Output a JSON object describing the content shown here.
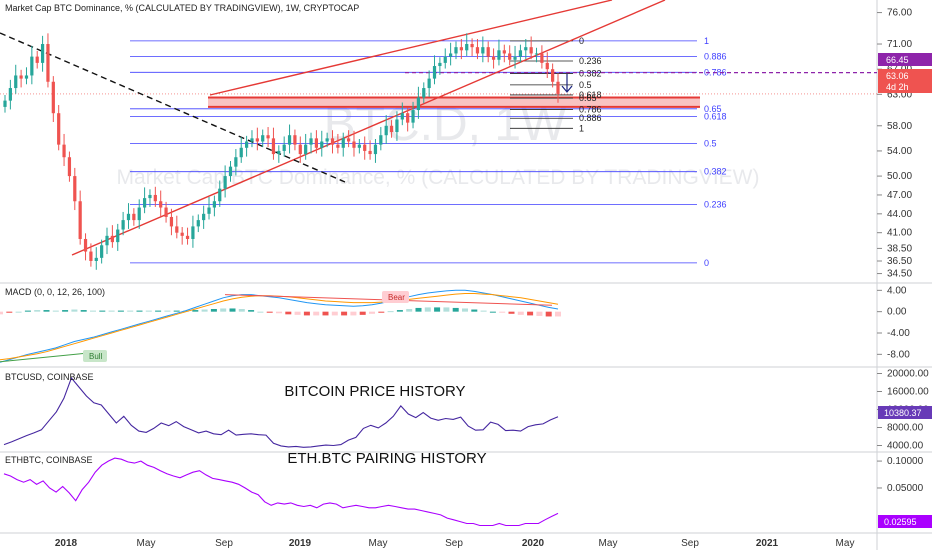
{
  "panes": {
    "main_title": "Market Cap BTC Dominance, % (CALCULATED BY TRADINGVIEW), 1W, CRYPTOCAP",
    "watermark_big": "BTC.D, 1W",
    "watermark_sub": "Market Cap BTC Dominance, % (CALCULATED BY TRADINGVIEW)",
    "macd_title": "MACD (0, 0, 12, 26, 100)",
    "btc_title": "BTCUSD, COINBASE",
    "btc_caption": "BITCOIN PRICE HISTORY",
    "eth_title": "ETHBTC, COINBASE",
    "eth_caption": "ETH.BTC PAIRING HISTORY"
  },
  "price_tags": {
    "level_66": "66.45",
    "last_price": "63.06",
    "countdown": "4d 2h",
    "btc_last": "10380.37",
    "eth_last": "0.02595"
  },
  "colors": {
    "up": "#26a69a",
    "down": "#ef5350",
    "fib_blue": "#3f3fff",
    "trend_red": "#e53935",
    "dotted_purple": "#8e24aa",
    "btc_line": "#4527a0",
    "eth_line": "#aa00ff",
    "macd_line": "#2196f3",
    "signal_line": "#ff9800"
  },
  "chart_data": [
    {
      "type": "candlestick",
      "pane": "main",
      "ylim": [
        33,
        78
      ],
      "yticks": [
        "76.00",
        "71.00",
        "67.00",
        "63.00",
        "58.00",
        "54.00",
        "50.00",
        "47.00",
        "44.00",
        "41.00",
        "38.50",
        "36.50",
        "34.50"
      ],
      "ytick_values": [
        76,
        71,
        67,
        63,
        58,
        54,
        50,
        47,
        44,
        41,
        38.5,
        36.5,
        34.5
      ],
      "x_labels": [
        "2018",
        "May",
        "Sep",
        "2019",
        "May",
        "Sep",
        "2020",
        "May",
        "Sep",
        "2021",
        "May"
      ],
      "closes": [
        62,
        64,
        66,
        65.5,
        66,
        69,
        68,
        71,
        65,
        60,
        55,
        53,
        50,
        46,
        40,
        38,
        36.5,
        37,
        39,
        40.5,
        39.5,
        41.5,
        43,
        44,
        43,
        45,
        46.5,
        47,
        46,
        45,
        43.5,
        42,
        41,
        40.5,
        40,
        42,
        43,
        44,
        45,
        46,
        48,
        50,
        51.5,
        53,
        54.5,
        55.5,
        56,
        55.5,
        56.5,
        56,
        53.5,
        54,
        55,
        56.5,
        55,
        53.5,
        55,
        56,
        54.5,
        55.5,
        56,
        55,
        54.5,
        56,
        55.5,
        54.5,
        55,
        54,
        53.5,
        55,
        56.5,
        58,
        57,
        59,
        60,
        58.5,
        60.5,
        62.5,
        64,
        65.5,
        67.5,
        68,
        69,
        69.5,
        70.5,
        70,
        71,
        70.5,
        69.5,
        70.5,
        69,
        68.5,
        70,
        69.5,
        68.5,
        69,
        70,
        70.5,
        69.5,
        69.5,
        68,
        67,
        65,
        63.06
      ],
      "fib_left_levels": [
        {
          "ratio": "1",
          "value": 71.5
        },
        {
          "ratio": "0.886",
          "value": 69
        },
        {
          "ratio": "0.786",
          "value": 66.5
        },
        {
          "ratio": "0.65",
          "value": 60.7
        },
        {
          "ratio": "0.618",
          "value": 59.5
        },
        {
          "ratio": "0.5",
          "value": 55.2
        },
        {
          "ratio": "0.382",
          "value": 50.7
        },
        {
          "ratio": "0.236",
          "value": 45.5
        },
        {
          "ratio": "0",
          "value": 36.2
        }
      ],
      "fib_right_levels": [
        {
          "ratio": "0",
          "value": 71.5
        },
        {
          "ratio": "0.236",
          "value": 68.3
        },
        {
          "ratio": "0.382",
          "value": 66.3
        },
        {
          "ratio": "0.5",
          "value": 64.5
        },
        {
          "ratio": "0.618",
          "value": 62.9
        },
        {
          "ratio": "0.65",
          "value": 62.4
        },
        {
          "ratio": "0.786",
          "value": 60.6
        },
        {
          "ratio": "0.886",
          "value": 59.2
        },
        {
          "ratio": "1",
          "value": 57.6
        }
      ],
      "resistance_zone": [
        61,
        62.5
      ],
      "dotted_level": 66.45,
      "last_price_level": 63.06
    },
    {
      "type": "macd",
      "pane": "macd",
      "ylim": [
        -10,
        5
      ],
      "yticks": [
        "4.00",
        "0.00",
        "-4.00",
        "-8.00"
      ],
      "ytick_values": [
        4,
        0,
        -4,
        -8
      ],
      "annotations": [
        "Bear",
        "Bull"
      ],
      "macd": [
        -9.5,
        -9,
        -8.5,
        -8,
        -7.6,
        -7.2,
        -6.8,
        -6.2,
        -5.6,
        -5.2,
        -4.8,
        -4.3,
        -3.8,
        -3.3,
        -2.8,
        -2.3,
        -1.8,
        -1.3,
        -0.8,
        -0.3,
        0.2,
        0.8,
        1.4,
        2,
        2.6,
        3,
        3.2,
        3.2,
        3,
        2.8,
        2.6,
        2.3,
        2,
        1.7,
        1.5,
        1.3,
        1.2,
        1.1,
        1,
        1.1,
        1.3,
        1.6,
        2,
        2.4,
        2.8,
        3.2,
        3.5,
        3.7,
        3.9,
        4,
        4,
        3.8,
        3.5,
        3.2,
        2.8,
        2.4,
        2,
        1.6,
        1.2,
        0.8,
        0.5
      ],
      "signal": [
        -9,
        -8.8,
        -8.5,
        -8.2,
        -7.9,
        -7.5,
        -7,
        -6.5,
        -6,
        -5.5,
        -5,
        -4.5,
        -4,
        -3.5,
        -3,
        -2.5,
        -2,
        -1.5,
        -1,
        -0.5,
        0,
        0.5,
        1,
        1.5,
        2,
        2.4,
        2.7,
        2.9,
        3,
        3,
        2.9,
        2.8,
        2.6,
        2.4,
        2.2,
        2,
        1.9,
        1.8,
        1.7,
        1.7,
        1.7,
        1.8,
        1.9,
        2.1,
        2.3,
        2.5,
        2.7,
        2.9,
        3.1,
        3.3,
        3.4,
        3.4,
        3.3,
        3.2,
        3,
        2.8,
        2.6,
        2.3,
        2,
        1.7,
        1.4
      ]
    },
    {
      "type": "line",
      "pane": "btc",
      "name": "BTCUSD",
      "ylim": [
        3000,
        21000
      ],
      "yticks": [
        "20000.00",
        "16000.00",
        "12000.00",
        "8000.00",
        "4000.00"
      ],
      "ytick_values": [
        20000,
        16000,
        12000,
        8000,
        4000
      ],
      "values": [
        4200,
        4800,
        5500,
        6200,
        6800,
        7500,
        9500,
        11500,
        14500,
        19000,
        17000,
        15000,
        13500,
        13000,
        11000,
        9000,
        10500,
        8500,
        7200,
        6900,
        7800,
        9000,
        8400,
        9300,
        8200,
        7500,
        6800,
        7200,
        6600,
        6400,
        7400,
        6300,
        6500,
        6600,
        6400,
        6300,
        4500,
        3900,
        3700,
        3800,
        3600,
        3700,
        3900,
        4100,
        4000,
        4200,
        5200,
        5800,
        7800,
        8500,
        7900,
        9000,
        10500,
        12800,
        11000,
        10200,
        11300,
        10100,
        9600,
        10000,
        9800,
        10300,
        8300,
        7400,
        7500,
        9200,
        8700,
        7300,
        7400,
        7200,
        8200,
        8600,
        8800,
        9700,
        10380
      ]
    },
    {
      "type": "line",
      "pane": "eth",
      "name": "ETHBTC",
      "ylim": [
        0.0165,
        0.12
      ],
      "yticks": [
        "0.10000",
        "0.05000"
      ],
      "ytick_values": [
        0.1,
        0.05
      ],
      "values": [
        0.072,
        0.068,
        0.062,
        0.058,
        0.062,
        0.055,
        0.06,
        0.05,
        0.045,
        0.052,
        0.044,
        0.036,
        0.048,
        0.058,
        0.075,
        0.09,
        0.1,
        0.108,
        0.105,
        0.098,
        0.095,
        0.1,
        0.09,
        0.085,
        0.078,
        0.072,
        0.068,
        0.065,
        0.07,
        0.075,
        0.078,
        0.07,
        0.064,
        0.062,
        0.06,
        0.058,
        0.055,
        0.05,
        0.045,
        0.042,
        0.035,
        0.032,
        0.034,
        0.033,
        0.034,
        0.032,
        0.031,
        0.032,
        0.03,
        0.033,
        0.034,
        0.033,
        0.03,
        0.031,
        0.032,
        0.031,
        0.03,
        0.03,
        0.031,
        0.032,
        0.031,
        0.03,
        0.029,
        0.029,
        0.028,
        0.027,
        0.026,
        0.025,
        0.023,
        0.022,
        0.021,
        0.02,
        0.02,
        0.019,
        0.019,
        0.019,
        0.02,
        0.019,
        0.019,
        0.019,
        0.02,
        0.02,
        0.02,
        0.022,
        0.024,
        0.026
      ]
    }
  ]
}
